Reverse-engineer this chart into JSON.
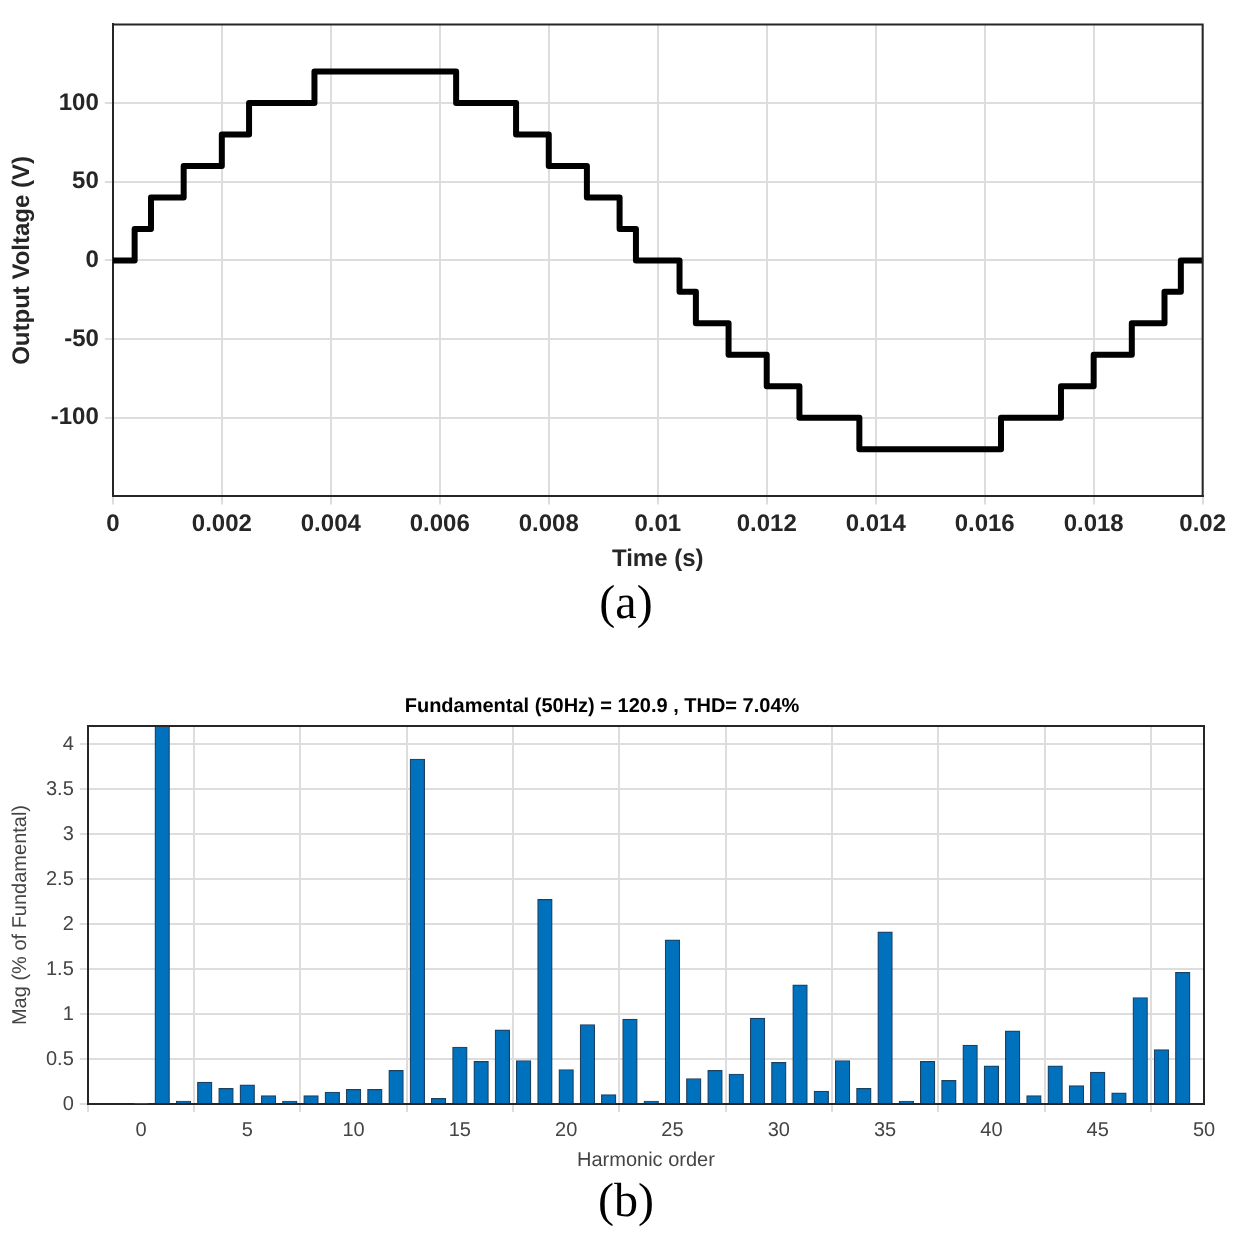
{
  "chart_data": [
    {
      "type": "step",
      "xlabel": "Time (s)",
      "ylabel": "Output Voltage (V)",
      "x": [
        0,
        0.0004,
        0.0007,
        0.0013,
        0.002,
        0.0025,
        0.0037,
        0.0063,
        0.0074,
        0.008,
        0.0087,
        0.0093,
        0.0096,
        0.0104,
        0.0107,
        0.0113,
        0.012,
        0.0126,
        0.0137,
        0.0163,
        0.0174,
        0.018,
        0.0187,
        0.0193,
        0.0196,
        0.02
      ],
      "series": [
        {
          "color": "#000000",
          "values": [
            0,
            20,
            40,
            60,
            80,
            100,
            120,
            100,
            80,
            60,
            40,
            20,
            0,
            -20,
            -40,
            -60,
            -80,
            -100,
            -120,
            -100,
            -80,
            -60,
            -40,
            -20,
            0,
            0
          ]
        }
      ],
      "xlim": [
        0,
        0.02
      ],
      "xticks": [
        0,
        0.002,
        0.004,
        0.006,
        0.008,
        0.01,
        0.012,
        0.014,
        0.016,
        0.018,
        0.02
      ],
      "ylim": [
        -150,
        150
      ],
      "yticks": [
        -100,
        -50,
        0,
        50,
        100
      ],
      "grid": true,
      "legend": false,
      "marker": "none",
      "line_style": "solid",
      "annotations": [
        "(a)"
      ]
    },
    {
      "type": "bar",
      "title": "Fundamental (50Hz) = 120.9 , THD= 7.04%",
      "xlabel": "Harmonic order",
      "ylabel": "Mag (% of Fundamental)",
      "x": [
        0,
        1,
        2,
        3,
        4,
        5,
        6,
        7,
        8,
        9,
        10,
        11,
        12,
        13,
        14,
        15,
        16,
        17,
        18,
        19,
        20,
        21,
        22,
        23,
        24,
        25,
        26,
        27,
        28,
        29,
        30,
        31,
        32,
        33,
        34,
        35,
        36,
        37,
        38,
        39,
        40,
        41,
        42,
        43,
        44,
        45,
        46,
        47,
        48,
        49
      ],
      "series": [
        {
          "color": "#0072bd",
          "values": [
            0.01,
            4.2,
            0.03,
            0.24,
            0.17,
            0.21,
            0.09,
            0.03,
            0.09,
            0.13,
            0.16,
            0.16,
            0.37,
            3.83,
            0.06,
            0.63,
            0.47,
            0.82,
            0.48,
            2.27,
            0.38,
            0.88,
            0.1,
            0.94,
            0.03,
            1.82,
            0.28,
            0.37,
            0.33,
            0.95,
            0.46,
            1.32,
            0.14,
            0.48,
            0.17,
            1.91,
            0.03,
            0.47,
            0.26,
            0.65,
            0.42,
            0.81,
            0.09,
            0.42,
            0.2,
            0.35,
            0.12,
            1.18,
            0.6,
            1.46
          ]
        }
      ],
      "xlim": [
        -2.5,
        50
      ],
      "xticks": [
        0,
        5,
        10,
        15,
        20,
        25,
        30,
        35,
        40,
        45,
        50
      ],
      "ylim": [
        0,
        4.2
      ],
      "yticks": [
        0,
        0.5,
        1,
        1.5,
        2,
        2.5,
        3,
        3.5,
        4
      ],
      "grid": true,
      "legend": false,
      "annotations": [
        "(b)"
      ]
    }
  ]
}
